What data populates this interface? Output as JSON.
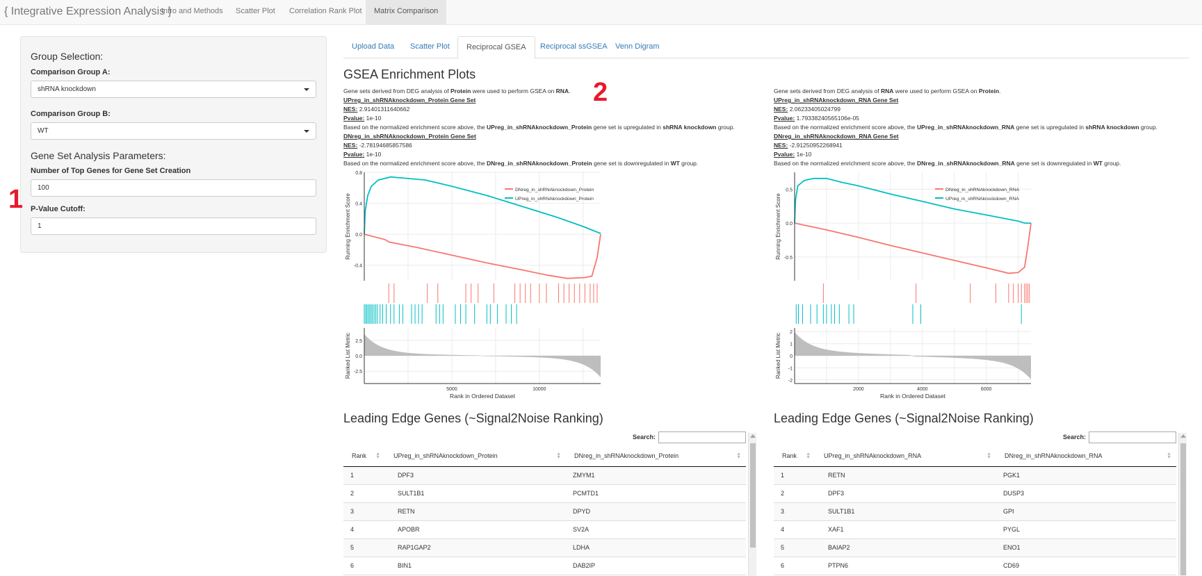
{
  "navbar": {
    "brand": "{ Integrative Expression Analysis }",
    "tabs": [
      "Intro and Methods",
      "Scatter Plot",
      "Correlation Rank Plot",
      "Matrix Comparison"
    ],
    "active_tab": "Matrix Comparison"
  },
  "sidebar": {
    "group_heading": "Group Selection:",
    "group_a_label": "Comparison Group A:",
    "group_a_value": "shRNA knockdown",
    "group_b_label": "Comparison Group B:",
    "group_b_value": "WT",
    "params_heading": "Gene Set Analysis Parameters:",
    "top_genes_label": "Number of Top Genes for Gene Set Creation",
    "top_genes_value": "100",
    "pvalue_label": "P-Value Cutoff:",
    "pvalue_value": "1"
  },
  "annotations": {
    "a1": "1",
    "a2": "2"
  },
  "tabs": [
    "Upload Data",
    "Scatter Plot",
    "Reciprocal GSEA",
    "Reciprocal ssGSEA",
    "Venn Digram"
  ],
  "active_tab": "Reciprocal GSEA",
  "main": {
    "gsea_title": "GSEA Enrichment Plots",
    "leading_title": "Leading Edge Genes (~Signal2Noise Ranking)",
    "search_label": "Search:"
  },
  "left_panel": {
    "intro_pre": "Gene sets derived from DEG analysis of ",
    "intro_src": "Protein",
    "intro_mid": " were used to perform GSEA on ",
    "intro_tgt": "RNA",
    "intro_end": ".",
    "up_title": "UPreg_in_shRNAknockdown_Protein Gene Set",
    "up_nes_label": "NES:",
    "up_nes": "2.91401311640662",
    "up_p_label": "Pvalue:",
    "up_p": "1e-10",
    "up_text_pre": "Based on the normalized enrichment score above, the ",
    "up_text_set": "UPreg_in_shRNAknockdown_Protein",
    "up_text_mid": " gene set is upregulated in ",
    "up_text_grp": "shRNA knockdown",
    "up_text_end": " group.",
    "dn_title": "DNreg_in_shRNAknockdown_Protein Gene Set",
    "dn_nes_label": "NES:",
    "dn_nes": "-2.78194685857586",
    "dn_p_label": "Pvalue:",
    "dn_p": "1e-10",
    "dn_text_pre": "Based on the normalized enrichment score above, the ",
    "dn_text_set": "DNreg_in_shRNAknockdown_Protein",
    "dn_text_mid": " gene set is downregulated in ",
    "dn_text_grp": "WT",
    "dn_text_end": " group.",
    "table": {
      "columns": [
        "Rank",
        "UPreg_in_shRNAknockdown_Protein",
        "DNreg_in_shRNAknockdown_Protein"
      ],
      "rows": [
        [
          "1",
          "DPF3",
          "ZMYM1"
        ],
        [
          "2",
          "SULT1B1",
          "PCMTD1"
        ],
        [
          "3",
          "RETN",
          "DPYD"
        ],
        [
          "4",
          "APOBR",
          "SV2A"
        ],
        [
          "5",
          "RAP1GAP2",
          "LDHA"
        ],
        [
          "6",
          "BIN1",
          "DAB2IP"
        ]
      ]
    }
  },
  "right_panel": {
    "intro_pre": "Gene sets derived from DEG analysis of ",
    "intro_src": "RNA",
    "intro_mid": " were used to perform GSEA on ",
    "intro_tgt": "Protein",
    "intro_end": ".",
    "up_title": "UPreg_in_shRNAknockdown_RNA Gene Set",
    "up_nes_label": "NES:",
    "up_nes": "2.06233405024799",
    "up_p_label": "Pvalue:",
    "up_p": "1.79338240565106e-05",
    "up_text_pre": "Based on the normalized enrichment score above, the ",
    "up_text_set": "UPreg_in_shRNAknockdown_RNA",
    "up_text_mid": " gene set is upregulated in ",
    "up_text_grp": "shRNA knockdown",
    "up_text_end": " group.",
    "dn_title": "DNreg_in_shRNAknockdown_RNA Gene Set",
    "dn_nes_label": "NES:",
    "dn_nes": "-2.91250952268941",
    "dn_p_label": "Pvalue:",
    "dn_p": "1e-10",
    "dn_text_pre": "Based on the normalized enrichment score above, the ",
    "dn_text_set": "DNreg_in_shRNAknockdown_RNA",
    "dn_text_mid": " gene set is downregulated in ",
    "dn_text_grp": "WT",
    "dn_text_end": " group.",
    "table": {
      "columns": [
        "Rank",
        "UPreg_in_shRNAknockdown_RNA",
        "DNreg_in_shRNAknockdown_RNA"
      ],
      "rows": [
        [
          "1",
          "RETN",
          "PGK1"
        ],
        [
          "2",
          "DPF3",
          "DUSP3"
        ],
        [
          "3",
          "SULT1B1",
          "GPI"
        ],
        [
          "4",
          "XAF1",
          "PYGL"
        ],
        [
          "5",
          "BAIAP2",
          "ENO1"
        ],
        [
          "6",
          "PTPN6",
          "CD69"
        ]
      ]
    }
  },
  "chart_data": [
    {
      "type": "line",
      "xlabel": "Rank in Ordered Dataset",
      "es_ylabel": "Running Enrichment Score",
      "metric_ylabel": "Ranked List Metric",
      "xlim": [
        0,
        13500
      ],
      "x_ticks": [
        5000,
        10000
      ],
      "es_ylim": [
        -0.6,
        0.8
      ],
      "es_ticks": [
        0.8,
        0.4,
        0.0,
        -0.4
      ],
      "metric_ylim": [
        -4.5,
        4.5
      ],
      "metric_ticks": [
        2.5,
        0.0,
        -2.5
      ],
      "legend_position": "top-right",
      "colors": {
        "dn": "#f8766d",
        "up": "#00bfc4",
        "metric": "#bebebe"
      },
      "series": [
        {
          "name": "DNreg_in_shRNAknockdown_Protein",
          "color": "#f8766d",
          "x": [
            0,
            1200,
            1400,
            3000,
            5000,
            7000,
            9000,
            10500,
            11600,
            12600,
            13000,
            13300,
            13500
          ],
          "y": [
            0.0,
            -0.07,
            -0.1,
            -0.17,
            -0.27,
            -0.37,
            -0.46,
            -0.53,
            -0.57,
            -0.56,
            -0.54,
            -0.3,
            0.0
          ]
        },
        {
          "name": "UPreg_in_shRNAknockdown_Protein",
          "color": "#00bfc4",
          "x": [
            0,
            50,
            200,
            400,
            800,
            1500,
            2500,
            3500,
            5000,
            7000,
            9000,
            11000,
            12500,
            13500
          ],
          "y": [
            0.0,
            0.3,
            0.5,
            0.62,
            0.7,
            0.74,
            0.72,
            0.7,
            0.62,
            0.5,
            0.36,
            0.22,
            0.1,
            0.01
          ]
        }
      ],
      "dn_hits": [
        1400,
        1700,
        3600,
        4200,
        5800,
        6100,
        6500,
        7400,
        8600,
        8900,
        9200,
        9500,
        10000,
        10400,
        11100,
        11400,
        11700,
        12000,
        12300,
        12600,
        12900,
        13100,
        13300
      ],
      "up_hits": [
        0,
        80,
        150,
        230,
        310,
        390,
        470,
        560,
        650,
        740,
        900,
        1050,
        1250,
        1500,
        1700,
        2000,
        2200,
        2700,
        2900,
        3100,
        3300,
        4100,
        4300,
        4500,
        5200,
        5500,
        5800,
        6300,
        7000,
        7200,
        7600,
        8100,
        8400,
        8700
      ]
    },
    {
      "type": "line",
      "xlabel": "Rank in Ordered Dataset",
      "es_ylabel": "Running Enrichment Score",
      "metric_ylabel": "Ranked List Metric",
      "xlim": [
        0,
        7400
      ],
      "x_ticks": [
        2000,
        4000,
        6000
      ],
      "es_ylim": [
        -0.85,
        0.75
      ],
      "es_ticks": [
        0.5,
        0.0,
        -0.5
      ],
      "metric_ylim": [
        -2.3,
        2.3
      ],
      "metric_ticks": [
        2,
        1,
        0,
        -1,
        -2
      ],
      "legend_position": "top-right",
      "colors": {
        "dn": "#f8766d",
        "up": "#00bfc4",
        "metric": "#bebebe"
      },
      "series": [
        {
          "name": "DNreg_in_shRNAknockdown_RNA",
          "color": "#f8766d",
          "x": [
            0,
            400,
            1000,
            2000,
            3000,
            4000,
            5000,
            6000,
            6700,
            7000,
            7200,
            7300,
            7400
          ],
          "y": [
            0.0,
            -0.04,
            -0.1,
            -0.21,
            -0.33,
            -0.44,
            -0.55,
            -0.66,
            -0.74,
            -0.73,
            -0.65,
            -0.35,
            0.0
          ]
        },
        {
          "name": "UPreg_in_shRNAknockdown_RNA",
          "color": "#00bfc4",
          "x": [
            0,
            30,
            100,
            300,
            600,
            1000,
            1500,
            2000,
            3000,
            4000,
            5000,
            6000,
            7000,
            7200,
            7400
          ],
          "y": [
            0.0,
            0.35,
            0.55,
            0.63,
            0.66,
            0.66,
            0.6,
            0.55,
            0.43,
            0.32,
            0.21,
            0.12,
            0.03,
            0.0,
            0.0
          ]
        }
      ],
      "dn_hits": [
        900,
        3800,
        5500,
        6300,
        6700,
        6850,
        7000,
        7100,
        7200,
        7250,
        7300,
        7350
      ],
      "up_hits": [
        50,
        120,
        250,
        500,
        700,
        900,
        1000,
        1150,
        1250,
        1400,
        1700,
        1850,
        3700,
        3950,
        7100
      ]
    }
  ]
}
